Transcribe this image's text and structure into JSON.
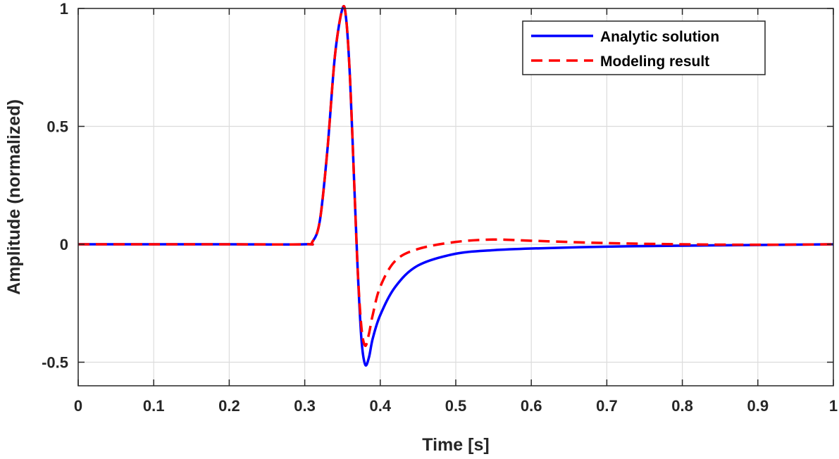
{
  "chart_data": {
    "type": "line",
    "title": "",
    "xlabel": "Time [s]",
    "ylabel": "Amplitude (normalized)",
    "xlim": [
      0,
      1
    ],
    "ylim": [
      -0.6,
      1
    ],
    "xticks": [
      0,
      0.1,
      0.2,
      0.3,
      0.4,
      0.5,
      0.6,
      0.7,
      0.8,
      0.9,
      1
    ],
    "xtick_labels": [
      "0",
      "0.1",
      "0.2",
      "0.3",
      "0.4",
      "0.5",
      "0.6",
      "0.7",
      "0.8",
      "0.9",
      "1"
    ],
    "yticks": [
      -0.5,
      0,
      0.5,
      1
    ],
    "ytick_labels": [
      "-0.5",
      "0",
      "0.5",
      "1"
    ],
    "grid": true,
    "legend_position": "top-right",
    "series": [
      {
        "name": "Analytic solution",
        "color": "#0000ff",
        "style": "solid",
        "x": [
          0,
          0.1,
          0.2,
          0.3,
          0.31,
          0.32,
          0.33,
          0.34,
          0.35,
          0.355,
          0.36,
          0.365,
          0.37,
          0.375,
          0.38,
          0.385,
          0.39,
          0.4,
          0.42,
          0.45,
          0.5,
          0.55,
          0.6,
          0.7,
          0.8,
          0.9,
          1.0
        ],
        "y": [
          0,
          0,
          0,
          0,
          0.01,
          0.1,
          0.4,
          0.8,
          1.0,
          0.95,
          0.7,
          0.3,
          -0.1,
          -0.4,
          -0.51,
          -0.48,
          -0.4,
          -0.3,
          -0.18,
          -0.09,
          -0.04,
          -0.025,
          -0.018,
          -0.01,
          -0.006,
          -0.003,
          0
        ]
      },
      {
        "name": "Modeling result",
        "color": "#ff0000",
        "style": "dashed",
        "x": [
          0,
          0.1,
          0.2,
          0.3,
          0.31,
          0.32,
          0.33,
          0.34,
          0.35,
          0.355,
          0.36,
          0.365,
          0.37,
          0.375,
          0.38,
          0.385,
          0.39,
          0.4,
          0.42,
          0.45,
          0.5,
          0.55,
          0.6,
          0.7,
          0.8,
          0.9,
          1.0
        ],
        "y": [
          0,
          0,
          0,
          0,
          0.01,
          0.1,
          0.4,
          0.8,
          1.0,
          0.95,
          0.7,
          0.3,
          -0.1,
          -0.35,
          -0.43,
          -0.38,
          -0.3,
          -0.18,
          -0.07,
          -0.02,
          0.01,
          0.02,
          0.015,
          0.005,
          0,
          -0.002,
          0
        ]
      }
    ]
  }
}
